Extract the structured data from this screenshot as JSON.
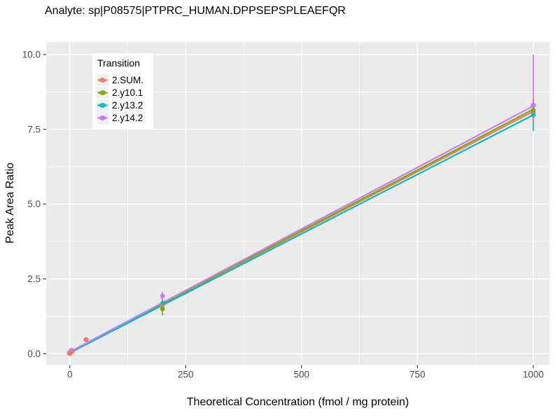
{
  "chart_data": {
    "type": "scatter",
    "title": "Analyte: sp|P08575|PTPRC_HUMAN.DPPSEPSPLEAEFQR",
    "xlabel": "Theoretical Concentration (fmol / mg protein)",
    "ylabel": "Peak Area Ratio",
    "legend": {
      "title": "Transition",
      "position": "top-left-inside"
    },
    "panel_bg": "#EBEBEB",
    "grid_color": "#FFFFFF",
    "tick_color": "#333333",
    "tick_label_color": "#4D4D4D",
    "legend_key_bg": "#F0F0F0",
    "xlim": [
      -51,
      1035
    ],
    "ylim": [
      -0.38,
      10.42
    ],
    "x_ticks": [
      {
        "value": 0,
        "label": "0"
      },
      {
        "value": 250,
        "label": "250"
      },
      {
        "value": 500,
        "label": "500"
      },
      {
        "value": 750,
        "label": "750"
      },
      {
        "value": 1000,
        "label": "1000"
      }
    ],
    "y_ticks": [
      {
        "value": 0,
        "label": "0.0"
      },
      {
        "value": 2.5,
        "label": "2.5"
      },
      {
        "value": 5,
        "label": "5.0"
      },
      {
        "value": 7.5,
        "label": "7.5"
      },
      {
        "value": 10,
        "label": "10.0"
      }
    ],
    "grid": {
      "major": true,
      "minor": true
    },
    "series": [
      {
        "name": "2.SUM.",
        "color": "#F8766D",
        "fit_line": {
          "x": [
            0,
            1000
          ],
          "y": [
            0.04,
            8.1
          ]
        },
        "points": [
          {
            "x": 0,
            "y": 0.02,
            "r": 4.2
          },
          {
            "x": 5,
            "y": 0.09,
            "r": 3.8
          },
          {
            "x": 35,
            "y": 0.47,
            "r": 3.6
          },
          {
            "x": 200,
            "y": 1.63,
            "ymin": 1.34,
            "ymax": 1.9
          },
          {
            "x": 1000,
            "y": 8.07,
            "ymin": 7.7,
            "ymax": 8.55
          }
        ]
      },
      {
        "name": "2.y10.1",
        "color": "#7CAE00",
        "fit_line": {
          "x": [
            0,
            1000
          ],
          "y": [
            0.05,
            8.17
          ]
        },
        "points": [
          {
            "x": 200,
            "y": 1.5,
            "ymin": 1.28,
            "ymax": 1.66
          },
          {
            "x": 1000,
            "y": 8.14,
            "ymin": 7.9,
            "ymax": 8.35
          }
        ]
      },
      {
        "name": "2.y13.2",
        "color": "#00BFC4",
        "fit_line": {
          "x": [
            0,
            1000
          ],
          "y": [
            0.03,
            7.98
          ]
        },
        "points": [
          {
            "x": 200,
            "y": 1.7,
            "r": 3.0,
            "ymin": 1.46,
            "ymax": 1.74
          },
          {
            "x": 1000,
            "y": 7.98,
            "ymin": 7.44,
            "ymax": 8.5
          }
        ]
      },
      {
        "name": "2.y14.2",
        "color": "#C77CFF",
        "fit_line": {
          "x": [
            0,
            1000
          ],
          "y": [
            0.06,
            8.28
          ]
        },
        "points": [
          {
            "x": 3,
            "y": 0.12,
            "r": 3.0
          },
          {
            "x": 200,
            "y": 1.93,
            "ymin": 1.8,
            "ymax": 2.07
          },
          {
            "x": 1000,
            "y": 8.3,
            "r": 3.8,
            "ymin": 7.6,
            "ymax": 10.0
          }
        ]
      }
    ]
  }
}
